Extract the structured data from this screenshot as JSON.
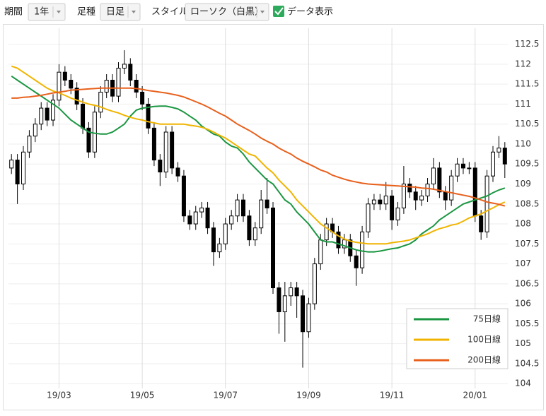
{
  "toolbar": {
    "period_label": "期間",
    "period_value": "1年",
    "bar_label": "足種",
    "bar_value": "日足",
    "style_label": "スタイル",
    "style_value": "ローソク（白黒）",
    "show_data_label": "データ表示"
  },
  "chart_data": {
    "type": "candlestick",
    "categories": [
      null,
      null,
      null,
      null,
      null,
      null,
      null,
      null,
      "19/03",
      null,
      null,
      null,
      null,
      null,
      null,
      null,
      null,
      null,
      null,
      null,
      null,
      null,
      "19/05",
      null,
      null,
      null,
      null,
      null,
      null,
      null,
      null,
      null,
      null,
      null,
      null,
      null,
      "19/07",
      null,
      null,
      null,
      null,
      null,
      null,
      null,
      null,
      null,
      null,
      null,
      null,
      null,
      "19/09",
      null,
      null,
      null,
      null,
      null,
      null,
      null,
      null,
      null,
      null,
      null,
      null,
      null,
      "19/11",
      null,
      null,
      null,
      null,
      null,
      null,
      null,
      null,
      null,
      null,
      null,
      null,
      null,
      "20/01",
      null,
      null,
      null,
      null,
      null
    ],
    "open": [
      109.4,
      109.6,
      109.0,
      109.8,
      110.2,
      110.5,
      110.9,
      110.6,
      111.1,
      111.8,
      111.6,
      111.4,
      111.0,
      110.4,
      109.8,
      110.8,
      111.3,
      111.6,
      111.2,
      111.9,
      112.0,
      111.6,
      111.3,
      111.0,
      110.4,
      109.6,
      109.3,
      110.3,
      109.4,
      109.2,
      108.2,
      108.0,
      108.3,
      108.4,
      107.9,
      107.3,
      107.5,
      108.0,
      108.2,
      108.6,
      108.2,
      107.6,
      107.9,
      108.6,
      108.4,
      106.4,
      105.8,
      106.2,
      106.4,
      106.2,
      105.3,
      106.0,
      107.0,
      107.6,
      108.0,
      107.8,
      107.4,
      107.6,
      107.2,
      106.9,
      107.8,
      108.5,
      108.6,
      108.5,
      108.7,
      108.1,
      108.4,
      109.0,
      108.8,
      108.6,
      108.7,
      109.0,
      109.4,
      108.8,
      108.6,
      109.2,
      109.5,
      109.4,
      109.4,
      108.2,
      107.8,
      109.2,
      109.8,
      109.9
    ],
    "high": [
      109.75,
      109.75,
      109.95,
      110.35,
      110.65,
      111.05,
      111.05,
      111.25,
      112.0,
      111.95,
      111.75,
      111.55,
      111.15,
      110.55,
      110.95,
      111.45,
      111.75,
      111.75,
      112.05,
      112.35,
      112.15,
      111.75,
      111.45,
      111.15,
      110.55,
      109.75,
      110.45,
      110.45,
      109.55,
      109.35,
      108.35,
      108.45,
      108.55,
      108.55,
      108.05,
      107.65,
      108.15,
      108.35,
      108.75,
      108.75,
      108.35,
      108.05,
      108.85,
      109.15,
      108.55,
      106.55,
      106.55,
      106.55,
      106.55,
      106.35,
      106.15,
      107.15,
      107.75,
      108.15,
      108.15,
      107.95,
      107.75,
      107.75,
      107.35,
      107.95,
      108.65,
      108.75,
      108.75,
      109.05,
      108.85,
      108.55,
      109.45,
      109.15,
      108.95,
      108.85,
      109.15,
      109.65,
      109.55,
      108.95,
      109.35,
      109.65,
      109.65,
      109.55,
      109.55,
      108.35,
      109.35,
      109.95,
      110.2,
      110.05
    ],
    "low": [
      109.25,
      108.5,
      108.85,
      109.65,
      110.05,
      110.35,
      110.45,
      110.45,
      110.95,
      111.45,
      111.25,
      110.85,
      110.25,
      109.65,
      109.65,
      110.65,
      111.15,
      111.05,
      111.05,
      111.75,
      111.45,
      111.15,
      110.85,
      110.25,
      109.45,
      108.95,
      109.15,
      109.25,
      109.05,
      108.05,
      107.85,
      107.85,
      108.15,
      107.75,
      106.95,
      107.15,
      107.35,
      107.85,
      108.05,
      108.05,
      107.45,
      107.45,
      107.75,
      108.25,
      106.25,
      105.25,
      105.05,
      105.95,
      105.65,
      104.4,
      105.15,
      105.85,
      106.85,
      107.45,
      107.65,
      107.25,
      107.25,
      107.05,
      106.45,
      106.75,
      107.65,
      108.35,
      108.35,
      108.35,
      107.85,
      107.95,
      108.25,
      108.65,
      108.35,
      108.45,
      108.55,
      108.85,
      108.65,
      108.35,
      108.45,
      109.05,
      109.25,
      109.25,
      108.05,
      107.6,
      107.65,
      109.05,
      109.65,
      109.15
    ],
    "close": [
      109.6,
      109.0,
      109.8,
      110.2,
      110.5,
      110.9,
      110.6,
      111.1,
      111.8,
      111.6,
      111.4,
      111.0,
      110.4,
      109.8,
      110.8,
      111.3,
      111.6,
      111.2,
      111.9,
      112.0,
      111.6,
      111.3,
      111.0,
      110.4,
      109.6,
      109.3,
      110.3,
      109.4,
      109.2,
      108.2,
      108.0,
      108.3,
      108.4,
      107.9,
      107.3,
      107.5,
      108.0,
      108.2,
      108.6,
      108.2,
      107.6,
      107.9,
      108.6,
      108.4,
      106.4,
      105.8,
      106.2,
      106.4,
      106.2,
      105.3,
      106.0,
      107.0,
      107.6,
      108.0,
      107.8,
      107.4,
      107.6,
      107.2,
      106.9,
      107.8,
      108.5,
      108.6,
      108.5,
      108.7,
      108.1,
      108.4,
      109.0,
      108.8,
      108.6,
      108.7,
      109.0,
      109.4,
      108.8,
      108.6,
      109.2,
      109.5,
      109.4,
      109.4,
      108.2,
      107.8,
      109.2,
      109.8,
      109.9,
      109.5
    ],
    "up_color": "#ffffff",
    "down_color": "#000000",
    "series": [
      {
        "name": "75日線",
        "color": "#1a9641",
        "values": [
          111.7,
          111.6,
          111.5,
          111.4,
          111.3,
          111.2,
          111.1,
          111.0,
          110.9,
          110.75,
          110.6,
          110.5,
          110.4,
          110.3,
          110.27,
          110.25,
          110.25,
          110.3,
          110.4,
          110.5,
          110.7,
          110.85,
          110.9,
          110.92,
          110.94,
          110.95,
          110.95,
          110.92,
          110.88,
          110.8,
          110.7,
          110.6,
          110.45,
          110.35,
          110.25,
          110.2,
          110.05,
          109.95,
          109.9,
          109.75,
          109.55,
          109.4,
          109.25,
          109.1,
          109.0,
          108.8,
          108.6,
          108.5,
          108.3,
          108.15,
          108.0,
          107.8,
          107.6,
          107.55,
          107.55,
          107.5,
          107.45,
          107.4,
          107.35,
          107.32,
          107.3,
          107.3,
          107.32,
          107.35,
          107.38,
          107.4,
          107.45,
          107.5,
          107.6,
          107.75,
          107.85,
          107.95,
          108.1,
          108.2,
          108.3,
          108.4,
          108.5,
          108.55,
          108.6,
          108.65,
          108.7,
          108.78,
          108.85,
          108.9
        ]
      },
      {
        "name": "100日線",
        "color": "#f0b400",
        "values": [
          111.95,
          111.9,
          111.8,
          111.7,
          111.6,
          111.5,
          111.4,
          111.33,
          111.28,
          111.22,
          111.15,
          111.1,
          111.05,
          111.0,
          110.97,
          110.93,
          110.87,
          110.82,
          110.78,
          110.72,
          110.67,
          110.63,
          110.6,
          110.56,
          110.53,
          110.5,
          110.5,
          110.5,
          110.5,
          110.5,
          110.47,
          110.45,
          110.42,
          110.37,
          110.3,
          110.22,
          110.15,
          110.05,
          109.95,
          109.85,
          109.75,
          109.7,
          109.55,
          109.4,
          109.28,
          109.1,
          108.95,
          108.8,
          108.6,
          108.45,
          108.3,
          108.15,
          108.0,
          107.9,
          107.8,
          107.7,
          107.62,
          107.57,
          107.54,
          107.52,
          107.5,
          107.5,
          107.5,
          107.5,
          107.53,
          107.55,
          107.57,
          107.6,
          107.65,
          107.7,
          107.75,
          107.82,
          107.88,
          107.92,
          107.97,
          108.0,
          108.07,
          108.15,
          108.2,
          108.25,
          108.33,
          108.4,
          108.48,
          108.55
        ]
      },
      {
        "name": "200日線",
        "color": "#e8601c",
        "values": [
          111.15,
          111.15,
          111.17,
          111.18,
          111.2,
          111.22,
          111.25,
          111.28,
          111.3,
          111.32,
          111.35,
          111.36,
          111.37,
          111.38,
          111.39,
          111.4,
          111.4,
          111.4,
          111.4,
          111.4,
          111.4,
          111.39,
          111.37,
          111.34,
          111.32,
          111.3,
          111.28,
          111.25,
          111.22,
          111.18,
          111.12,
          111.06,
          111.0,
          110.93,
          110.85,
          110.77,
          110.7,
          110.6,
          110.5,
          110.42,
          110.34,
          110.25,
          110.15,
          110.07,
          110.0,
          109.9,
          109.82,
          109.75,
          109.65,
          109.57,
          109.5,
          109.43,
          109.35,
          109.3,
          109.22,
          109.17,
          109.12,
          109.08,
          109.05,
          109.02,
          109.0,
          108.99,
          108.98,
          108.97,
          108.96,
          108.95,
          108.94,
          108.93,
          108.92,
          108.9,
          108.89,
          108.87,
          108.84,
          108.81,
          108.78,
          108.75,
          108.72,
          108.69,
          108.65,
          108.6,
          108.55,
          108.52,
          108.49,
          108.45
        ]
      }
    ],
    "ylim": [
      103.88,
      112.9
    ],
    "yticks": [
      104,
      104.5,
      105,
      105.5,
      106,
      106.5,
      107,
      107.5,
      108,
      108.5,
      109,
      109.5,
      110,
      110.5,
      111,
      111.5,
      112,
      112.5
    ],
    "grid": true,
    "legend": "lower right"
  }
}
